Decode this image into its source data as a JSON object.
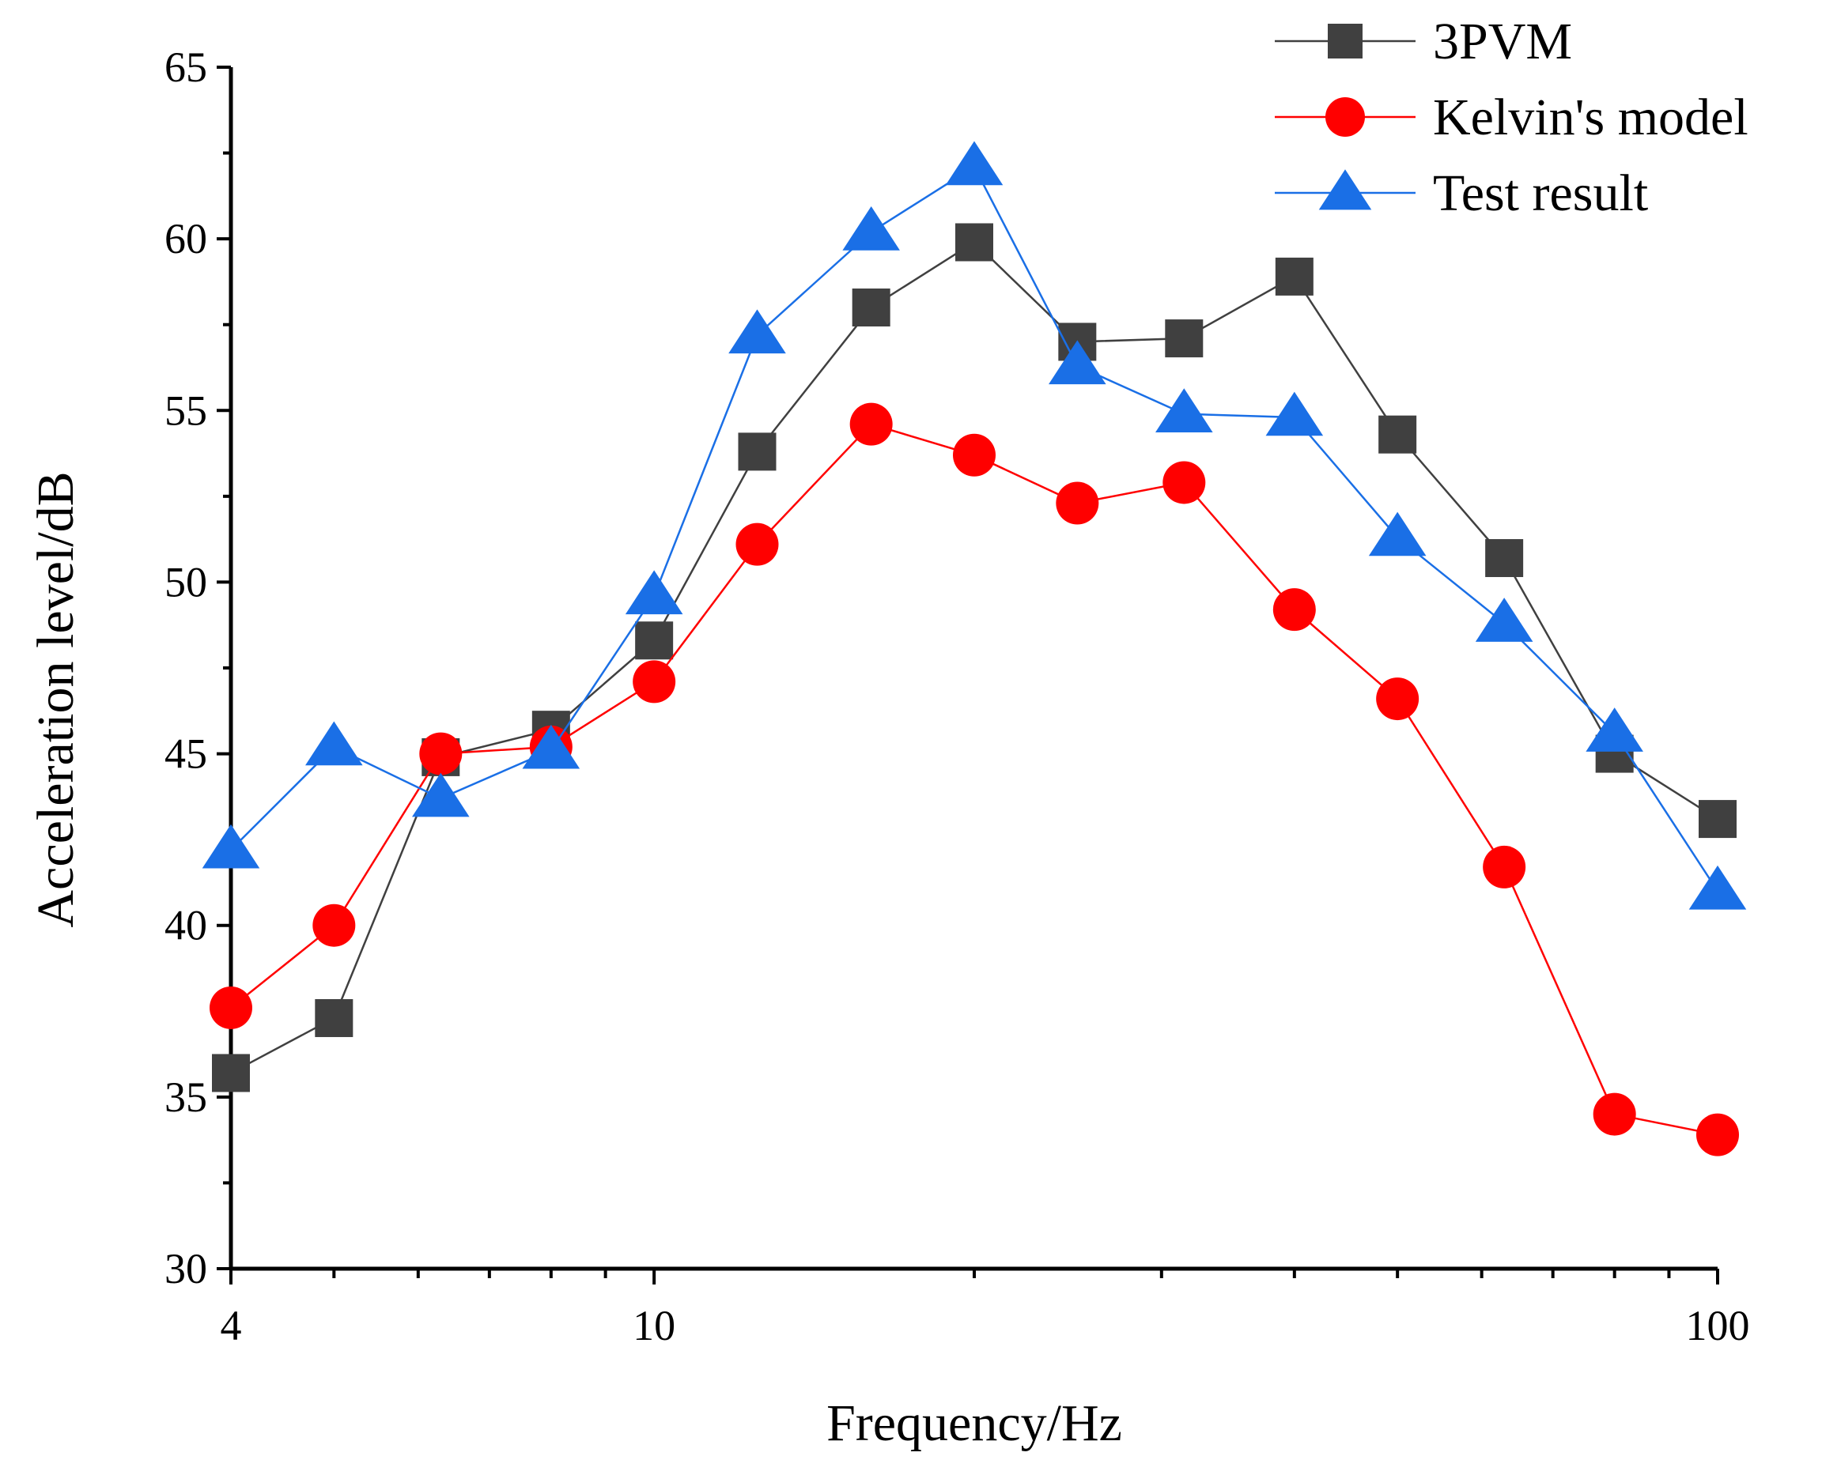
{
  "chart_data": {
    "type": "line",
    "title": "",
    "xlabel": "Frequency/Hz",
    "ylabel": "Acceleration level/dB",
    "xscale": "log",
    "xlim": [
      4,
      100
    ],
    "ylim": [
      30,
      65
    ],
    "xticks": [
      4,
      10,
      100
    ],
    "xtick_labels": [
      "4",
      "10",
      "100"
    ],
    "yticks": [
      30,
      35,
      40,
      45,
      50,
      55,
      60,
      65
    ],
    "ytick_labels": [
      "30",
      "35",
      "40",
      "45",
      "50",
      "55",
      "60",
      "65"
    ],
    "grid": false,
    "legend_position": "top-right",
    "x": [
      4,
      5,
      6.3,
      8,
      10,
      12.5,
      16,
      20,
      25,
      31.5,
      40,
      50,
      63,
      80,
      100
    ],
    "series": [
      {
        "name": "3PVM",
        "color": "#404040",
        "marker": "square",
        "values": [
          35.7,
          37.3,
          44.9,
          45.7,
          48.3,
          53.8,
          58.0,
          59.9,
          57.0,
          57.1,
          58.9,
          54.3,
          50.7,
          45.0,
          43.1
        ]
      },
      {
        "name": "Kelvin's model",
        "color": "#ff0000",
        "marker": "circle",
        "values": [
          37.6,
          40.0,
          45.0,
          45.2,
          47.1,
          51.1,
          54.6,
          53.7,
          52.3,
          52.9,
          49.2,
          46.6,
          41.7,
          34.5,
          33.9
        ]
      },
      {
        "name": "Test result",
        "color": "#1a6fe6",
        "marker": "triangle",
        "values": [
          42.2,
          45.2,
          43.7,
          45.1,
          49.6,
          57.2,
          60.2,
          62.1,
          56.3,
          54.9,
          54.8,
          51.3,
          48.8,
          45.6,
          41.0
        ]
      }
    ]
  }
}
